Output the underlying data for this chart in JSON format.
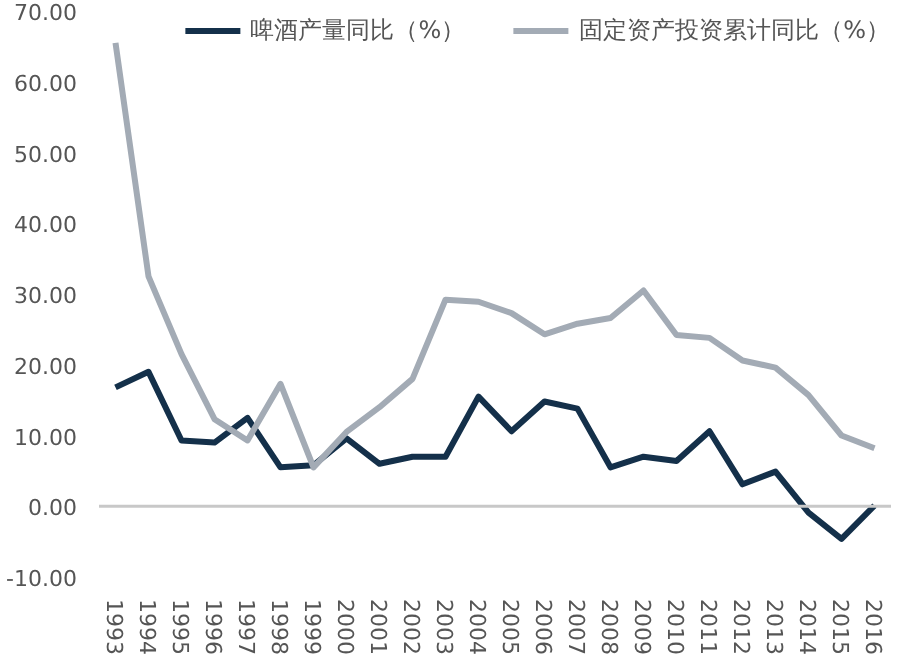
{
  "chart_data": {
    "type": "line",
    "categories": [
      "1993",
      "1994",
      "1995",
      "1996",
      "1997",
      "1998",
      "1999",
      "2000",
      "2001",
      "2002",
      "2003",
      "2004",
      "2005",
      "2006",
      "2007",
      "2008",
      "2009",
      "2010",
      "2011",
      "2012",
      "2013",
      "2014",
      "2015",
      "2016"
    ],
    "series": [
      {
        "name": "啤酒产量同比（%）",
        "color": "#14304a",
        "values": [
          16.8,
          19,
          9.3,
          9,
          12.5,
          5.5,
          5.8,
          9.6,
          6,
          7,
          7,
          15.5,
          10.6,
          14.8,
          13.8,
          5.5,
          7,
          6.4,
          10.6,
          3.1,
          4.9,
          -0.9,
          -4.6,
          0.1
        ]
      },
      {
        "name": "固定资产投资累计同比（%）",
        "color": "#a3abb5",
        "values": [
          65.5,
          32.5,
          21.5,
          12.3,
          9.3,
          17.3,
          5.5,
          10.5,
          14,
          18,
          29.2,
          28.9,
          27.3,
          24.3,
          25.8,
          26.6,
          30.5,
          24.2,
          23.8,
          20.6,
          19.6,
          15.7,
          10,
          8.2
        ]
      }
    ],
    "ylim": [
      -10,
      70
    ],
    "yticks": [
      {
        "value": -10,
        "label": "-10.00"
      },
      {
        "value": 0,
        "label": "0.00"
      },
      {
        "value": 10,
        "label": "10.00"
      },
      {
        "value": 20,
        "label": "20.00"
      },
      {
        "value": 30,
        "label": "30.00"
      },
      {
        "value": 40,
        "label": "40.00"
      },
      {
        "value": 50,
        "label": "50.00"
      },
      {
        "value": 60,
        "label": "60.00"
      },
      {
        "value": 70,
        "label": "70.00"
      }
    ],
    "ref_lines": [
      {
        "axis": "y",
        "value": 0,
        "color": "#c8c8c8"
      }
    ],
    "grid": false,
    "legend": "top",
    "marker": "none",
    "line_style": "solid"
  }
}
